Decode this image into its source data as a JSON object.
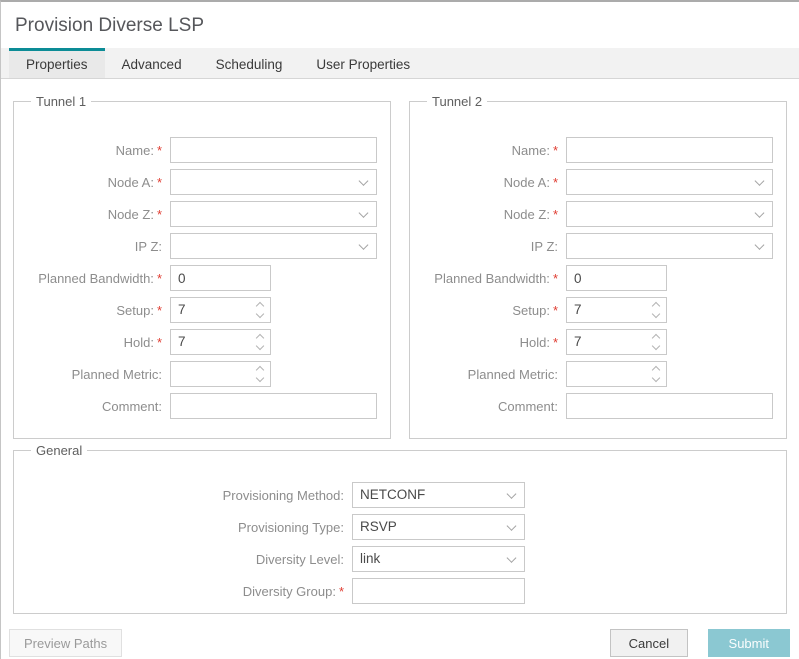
{
  "window": {
    "title": "Provision Diverse LSP"
  },
  "tabs": [
    {
      "label": "Properties",
      "active": true
    },
    {
      "label": "Advanced",
      "active": false
    },
    {
      "label": "Scheduling",
      "active": false
    },
    {
      "label": "User Properties",
      "active": false
    }
  ],
  "sections": {
    "tunnel1": {
      "legend": "Tunnel 1",
      "fields": [
        {
          "name": "name",
          "label": "Name:",
          "required": true,
          "type": "text",
          "size": "wide",
          "value": ""
        },
        {
          "name": "node-a",
          "label": "Node A:",
          "required": true,
          "type": "select",
          "size": "wide",
          "value": ""
        },
        {
          "name": "node-z",
          "label": "Node Z:",
          "required": true,
          "type": "select",
          "size": "wide",
          "value": ""
        },
        {
          "name": "ip-z",
          "label": "IP Z:",
          "required": false,
          "type": "select",
          "size": "wide",
          "value": ""
        },
        {
          "name": "planned-bandwidth",
          "label": "Planned Bandwidth:",
          "required": true,
          "type": "text",
          "size": "small",
          "value": "0"
        },
        {
          "name": "setup",
          "label": "Setup:",
          "required": true,
          "type": "spinner",
          "size": "small",
          "value": "7"
        },
        {
          "name": "hold",
          "label": "Hold:",
          "required": true,
          "type": "spinner",
          "size": "small",
          "value": "7"
        },
        {
          "name": "planned-metric",
          "label": "Planned Metric:",
          "required": false,
          "type": "spinner",
          "size": "small",
          "value": ""
        },
        {
          "name": "comment",
          "label": "Comment:",
          "required": false,
          "type": "text",
          "size": "wide",
          "value": ""
        }
      ]
    },
    "tunnel2": {
      "legend": "Tunnel 2",
      "fields": [
        {
          "name": "name",
          "label": "Name:",
          "required": true,
          "type": "text",
          "size": "wide",
          "value": ""
        },
        {
          "name": "node-a",
          "label": "Node A:",
          "required": true,
          "type": "select",
          "size": "wide",
          "value": ""
        },
        {
          "name": "node-z",
          "label": "Node Z:",
          "required": true,
          "type": "select",
          "size": "wide",
          "value": ""
        },
        {
          "name": "ip-z",
          "label": "IP Z:",
          "required": false,
          "type": "select",
          "size": "wide",
          "value": ""
        },
        {
          "name": "planned-bandwidth",
          "label": "Planned Bandwidth:",
          "required": true,
          "type": "text",
          "size": "small",
          "value": "0"
        },
        {
          "name": "setup",
          "label": "Setup:",
          "required": true,
          "type": "spinner",
          "size": "small",
          "value": "7"
        },
        {
          "name": "hold",
          "label": "Hold:",
          "required": true,
          "type": "spinner",
          "size": "small",
          "value": "7"
        },
        {
          "name": "planned-metric",
          "label": "Planned Metric:",
          "required": false,
          "type": "spinner",
          "size": "small",
          "value": ""
        },
        {
          "name": "comment",
          "label": "Comment:",
          "required": false,
          "type": "text",
          "size": "wide",
          "value": ""
        }
      ]
    },
    "general": {
      "legend": "General",
      "fields": [
        {
          "name": "provisioning-method",
          "label": "Provisioning Method:",
          "required": false,
          "type": "select",
          "size": "mid",
          "value": "NETCONF"
        },
        {
          "name": "provisioning-type",
          "label": "Provisioning Type:",
          "required": false,
          "type": "select",
          "size": "mid",
          "value": "RSVP"
        },
        {
          "name": "diversity-level",
          "label": "Diversity Level:",
          "required": false,
          "type": "select",
          "size": "mid",
          "value": "link"
        },
        {
          "name": "diversity-group",
          "label": "Diversity Group:",
          "required": true,
          "type": "text",
          "size": "mid",
          "value": ""
        }
      ]
    }
  },
  "footer": {
    "preview_paths": "Preview Paths",
    "cancel": "Cancel",
    "submit": "Submit"
  },
  "colors": {
    "accent": "#0c8c96",
    "submit_bg": "#8bc8d2",
    "required": "#e03c31"
  }
}
